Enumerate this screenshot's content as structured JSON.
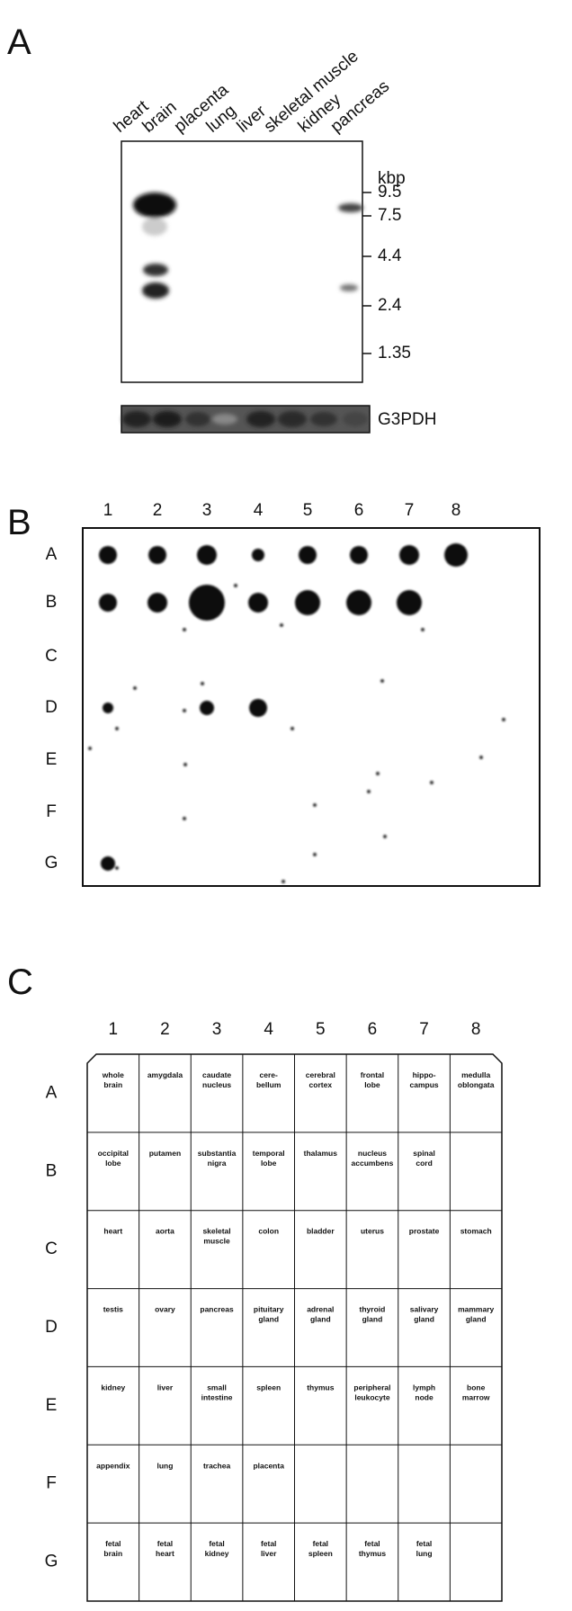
{
  "panel_a": {
    "label": "A",
    "lanes": [
      "heart",
      "brain",
      "placenta",
      "lung",
      "liver",
      "skeletal muscle",
      "kidney",
      "pancreas"
    ],
    "unit": "kbp",
    "markers": [
      "9.5",
      "7.5",
      "4.4",
      "2.4",
      "1.35"
    ],
    "loading_control": "G3PDH"
  },
  "panel_b": {
    "label": "B",
    "columns": [
      "1",
      "2",
      "3",
      "4",
      "5",
      "6",
      "7",
      "8"
    ],
    "rows": [
      "A",
      "B",
      "C",
      "D",
      "E",
      "F",
      "G"
    ]
  },
  "panel_c": {
    "label": "C",
    "columns": [
      "1",
      "2",
      "3",
      "4",
      "5",
      "6",
      "7",
      "8"
    ],
    "rows": [
      "A",
      "B",
      "C",
      "D",
      "E",
      "F",
      "G"
    ],
    "cells": [
      [
        [
          "whole",
          "brain"
        ],
        [
          "amygdala"
        ],
        [
          "caudate",
          "nucleus"
        ],
        [
          "cere-",
          "bellum"
        ],
        [
          "cerebral",
          "cortex"
        ],
        [
          "frontal",
          "lobe"
        ],
        [
          "hippo-",
          "campus"
        ],
        [
          "medulla",
          "oblongata"
        ]
      ],
      [
        [
          "occipital",
          "lobe"
        ],
        [
          "putamen"
        ],
        [
          "substantia",
          "nigra"
        ],
        [
          "temporal",
          "lobe"
        ],
        [
          "thalamus"
        ],
        [
          "nucleus",
          "accumbens"
        ],
        [
          "spinal",
          "cord"
        ],
        null
      ],
      [
        [
          "heart"
        ],
        [
          "aorta"
        ],
        [
          "skeletal",
          "muscle"
        ],
        [
          "colon"
        ],
        [
          "bladder"
        ],
        [
          "uterus"
        ],
        [
          "prostate"
        ],
        [
          "stomach"
        ]
      ],
      [
        [
          "testis"
        ],
        [
          "ovary"
        ],
        [
          "pancreas"
        ],
        [
          "pituitary",
          "gland"
        ],
        [
          "adrenal",
          "gland"
        ],
        [
          "thyroid",
          "gland"
        ],
        [
          "salivary",
          "gland"
        ],
        [
          "mammary",
          "gland"
        ]
      ],
      [
        [
          "kidney"
        ],
        [
          "liver"
        ],
        [
          "small",
          "intestine"
        ],
        [
          "spleen"
        ],
        [
          "thymus"
        ],
        [
          "peripheral",
          "leukocyte"
        ],
        [
          "lymph",
          "node"
        ],
        [
          "bone",
          "marrow"
        ]
      ],
      [
        [
          "appendix"
        ],
        [
          "lung"
        ],
        [
          "trachea"
        ],
        [
          "placenta"
        ],
        null,
        null,
        null,
        null
      ],
      [
        [
          "fetal",
          "brain"
        ],
        [
          "fetal",
          "heart"
        ],
        [
          "fetal",
          "kidney"
        ],
        [
          "fetal",
          "liver"
        ],
        [
          "fetal",
          "spleen"
        ],
        [
          "fetal",
          "thymus"
        ],
        [
          "fetal",
          "lung"
        ],
        null
      ]
    ]
  }
}
